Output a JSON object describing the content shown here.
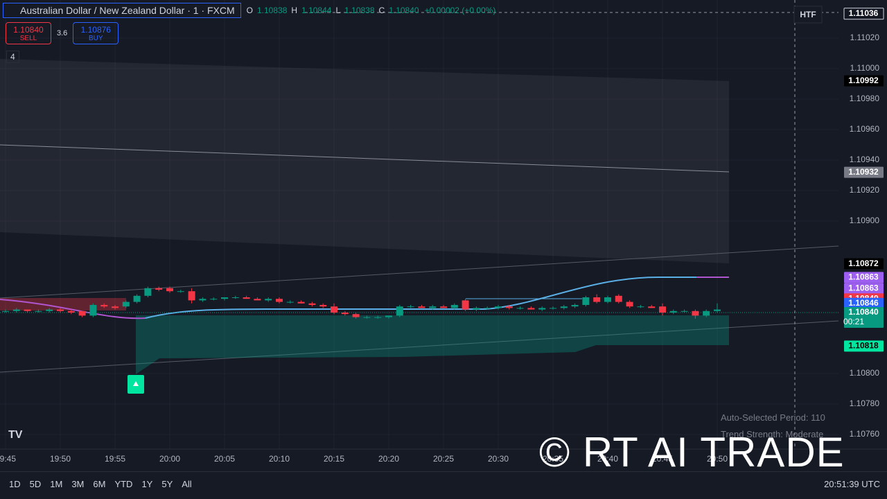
{
  "header": {
    "symbol": "Australian Dollar / New Zealand Dollar · 1 · FXCM",
    "ohlc": [
      {
        "key": "O",
        "value": "1.10838"
      },
      {
        "key": "H",
        "value": "1.10844"
      },
      {
        "key": "L",
        "value": "1.10838"
      },
      {
        "key": "C",
        "value": "1.10840"
      }
    ],
    "change": "+0.00002 (+0.00%)",
    "sell_price": "1.10840",
    "sell_label": "SELL",
    "spread": "3.6",
    "buy_price": "1.10876",
    "buy_label": "BUY",
    "indicators_count": "4",
    "htf": "HTF"
  },
  "overlay": {
    "period": "Auto-Selected Period: 110",
    "trend": "Trend Strength: Moderate",
    "watermark": "© RT AI TRADE"
  },
  "toolbar": {
    "ranges": [
      "1D",
      "5D",
      "1M",
      "3M",
      "6M",
      "YTD",
      "1Y",
      "5Y",
      "All"
    ],
    "clock": "20:51:39 UTC"
  },
  "chart_data": {
    "type": "candlestick",
    "categories": [
      "19:45",
      "19:46",
      "19:47",
      "19:48",
      "19:49",
      "19:50",
      "19:51",
      "19:52",
      "19:53",
      "19:54",
      "19:55",
      "19:56",
      "19:57",
      "19:58",
      "19:59",
      "20:00",
      "20:01",
      "20:02",
      "20:03",
      "20:04",
      "20:05",
      "20:06",
      "20:07",
      "20:08",
      "20:09",
      "20:10",
      "20:11",
      "20:12",
      "20:13",
      "20:14",
      "20:15",
      "20:16",
      "20:17",
      "20:18",
      "20:19",
      "20:20",
      "20:21",
      "20:22",
      "20:23",
      "20:24",
      "20:25",
      "20:26",
      "20:27",
      "20:28",
      "20:29",
      "20:30",
      "20:31",
      "20:32",
      "20:33",
      "20:34",
      "20:35",
      "20:36",
      "20:37",
      "20:38",
      "20:39",
      "20:40",
      "20:41",
      "20:42",
      "20:43",
      "20:44",
      "20:45",
      "20:46",
      "20:47",
      "20:48",
      "20:49",
      "20:50"
    ],
    "open": [
      1.10841,
      1.10841,
      1.10842,
      1.10841,
      1.10841,
      1.10842,
      1.10841,
      1.10841,
      1.10838,
      1.10845,
      1.10844,
      1.10844,
      1.10847,
      1.10851,
      1.10856,
      1.10856,
      1.10854,
      1.10854,
      1.10848,
      1.10849,
      1.10849,
      1.1085,
      1.1085,
      1.10849,
      1.10848,
      1.10849,
      1.10847,
      1.10847,
      1.10846,
      1.10845,
      1.10844,
      1.1084,
      1.10839,
      1.10837,
      1.10837,
      1.10837,
      1.10838,
      1.10844,
      1.10844,
      1.10843,
      1.10844,
      1.10843,
      1.10848,
      1.10842,
      1.10843,
      1.10843,
      1.10844,
      1.10843,
      1.10843,
      1.10842,
      1.10843,
      1.10843,
      1.10844,
      1.10845,
      1.1085,
      1.10847,
      1.10851,
      1.10847,
      1.10844,
      1.10844,
      1.10844,
      1.1084,
      1.10841,
      1.10841,
      1.10838,
      1.10841
    ],
    "high": [
      1.10842,
      1.10843,
      1.10842,
      1.10842,
      1.10843,
      1.10843,
      1.10842,
      1.10841,
      1.10846,
      1.10846,
      1.10845,
      1.10848,
      1.10852,
      1.10857,
      1.10857,
      1.10857,
      1.10855,
      1.10856,
      1.1085,
      1.1085,
      1.1085,
      1.10851,
      1.10851,
      1.1085,
      1.1085,
      1.1085,
      1.10848,
      1.10848,
      1.10847,
      1.10846,
      1.10846,
      1.10841,
      1.1084,
      1.10838,
      1.10838,
      1.10838,
      1.10845,
      1.10845,
      1.10845,
      1.10845,
      1.10845,
      1.10846,
      1.10849,
      1.10844,
      1.10844,
      1.10845,
      1.10845,
      1.10844,
      1.10844,
      1.10844,
      1.10844,
      1.10845,
      1.10846,
      1.10851,
      1.10852,
      1.10851,
      1.10852,
      1.10848,
      1.10845,
      1.10845,
      1.10846,
      1.10842,
      1.10842,
      1.10842,
      1.10842,
      1.10846
    ],
    "low": [
      1.1084,
      1.1084,
      1.1084,
      1.1084,
      1.1084,
      1.1084,
      1.10839,
      1.10837,
      1.10837,
      1.10843,
      1.10842,
      1.10843,
      1.10846,
      1.1085,
      1.10854,
      1.10853,
      1.10853,
      1.10846,
      1.10847,
      1.10848,
      1.10848,
      1.10849,
      1.10849,
      1.10848,
      1.10847,
      1.10846,
      1.10846,
      1.10846,
      1.10844,
      1.10843,
      1.10839,
      1.10838,
      1.10836,
      1.10836,
      1.10836,
      1.10836,
      1.10837,
      1.10843,
      1.10843,
      1.10842,
      1.10843,
      1.10842,
      1.10841,
      1.10841,
      1.10842,
      1.10842,
      1.10842,
      1.10842,
      1.10842,
      1.10841,
      1.10842,
      1.10842,
      1.10843,
      1.10844,
      1.10846,
      1.10846,
      1.10846,
      1.10843,
      1.10843,
      1.10843,
      1.10838,
      1.10839,
      1.1084,
      1.10836,
      1.10837,
      1.1084
    ],
    "close": [
      1.10841,
      1.10842,
      1.10841,
      1.10841,
      1.10842,
      1.10841,
      1.1084,
      1.10838,
      1.10845,
      1.10844,
      1.10843,
      1.10847,
      1.10851,
      1.10856,
      1.10855,
      1.10854,
      1.10854,
      1.10848,
      1.10849,
      1.10849,
      1.1085,
      1.1085,
      1.10849,
      1.10848,
      1.10849,
      1.10847,
      1.10847,
      1.10846,
      1.10845,
      1.10844,
      1.1084,
      1.10839,
      1.10837,
      1.10837,
      1.10837,
      1.10838,
      1.10844,
      1.10844,
      1.10843,
      1.10844,
      1.10843,
      1.10845,
      1.10842,
      1.10843,
      1.10843,
      1.10844,
      1.10843,
      1.10843,
      1.10842,
      1.10843,
      1.10843,
      1.10844,
      1.10845,
      1.1085,
      1.10847,
      1.1085,
      1.10847,
      1.10844,
      1.10844,
      1.10843,
      1.1084,
      1.10841,
      1.10841,
      1.10838,
      1.10841,
      1.10842
    ],
    "up_color": "#089981",
    "down_color": "#f23645",
    "xticks": [
      "19:45",
      "19:50",
      "19:55",
      "20:00",
      "20:05",
      "20:10",
      "20:15",
      "20:20",
      "20:25",
      "20:30",
      "20:35",
      "20:40",
      "20:45",
      "20:50"
    ],
    "ylim": [
      1.1075,
      1.11045
    ],
    "yticks": [
      {
        "value": 1.1076,
        "label": "1.10760"
      },
      {
        "value": 1.1078,
        "label": "1.10780"
      },
      {
        "value": 1.108,
        "label": "1.10800"
      },
      {
        "value": 1.109,
        "label": "1.10900"
      },
      {
        "value": 1.1092,
        "label": "1.10920"
      },
      {
        "value": 1.1094,
        "label": "1.10940"
      },
      {
        "value": 1.1096,
        "label": "1.10960"
      },
      {
        "value": 1.1098,
        "label": "1.10980"
      },
      {
        "value": 1.11,
        "label": "1.11000"
      },
      {
        "value": 1.1102,
        "label": "1.11020"
      }
    ],
    "grid": true,
    "price_labels": [
      {
        "value": 1.11036,
        "label": "1.11036",
        "color": "#131722"
      },
      {
        "value": 1.10992,
        "label": "1.10992",
        "color": "#000000"
      },
      {
        "value": 1.10932,
        "label": "1.10932",
        "color": "#787b86"
      },
      {
        "value": 1.10872,
        "label": "1.10872",
        "color": "#000000"
      },
      {
        "value": 1.10863,
        "label": "1.10863",
        "color": "#9c5ff0"
      },
      {
        "value": 1.10863,
        "label": "1.10863",
        "color": "#9c5ff0"
      },
      {
        "value": 1.10849,
        "label": "1.10849",
        "color": "#f23645"
      },
      {
        "value": 1.10846,
        "label": "1.10846",
        "color": "#2962ff"
      },
      {
        "value": 1.1084,
        "label": "1.10840",
        "color": "#089981",
        "sub": "00:21"
      },
      {
        "value": 1.10818,
        "label": "1.10818",
        "color": "#00e6a0"
      }
    ]
  }
}
